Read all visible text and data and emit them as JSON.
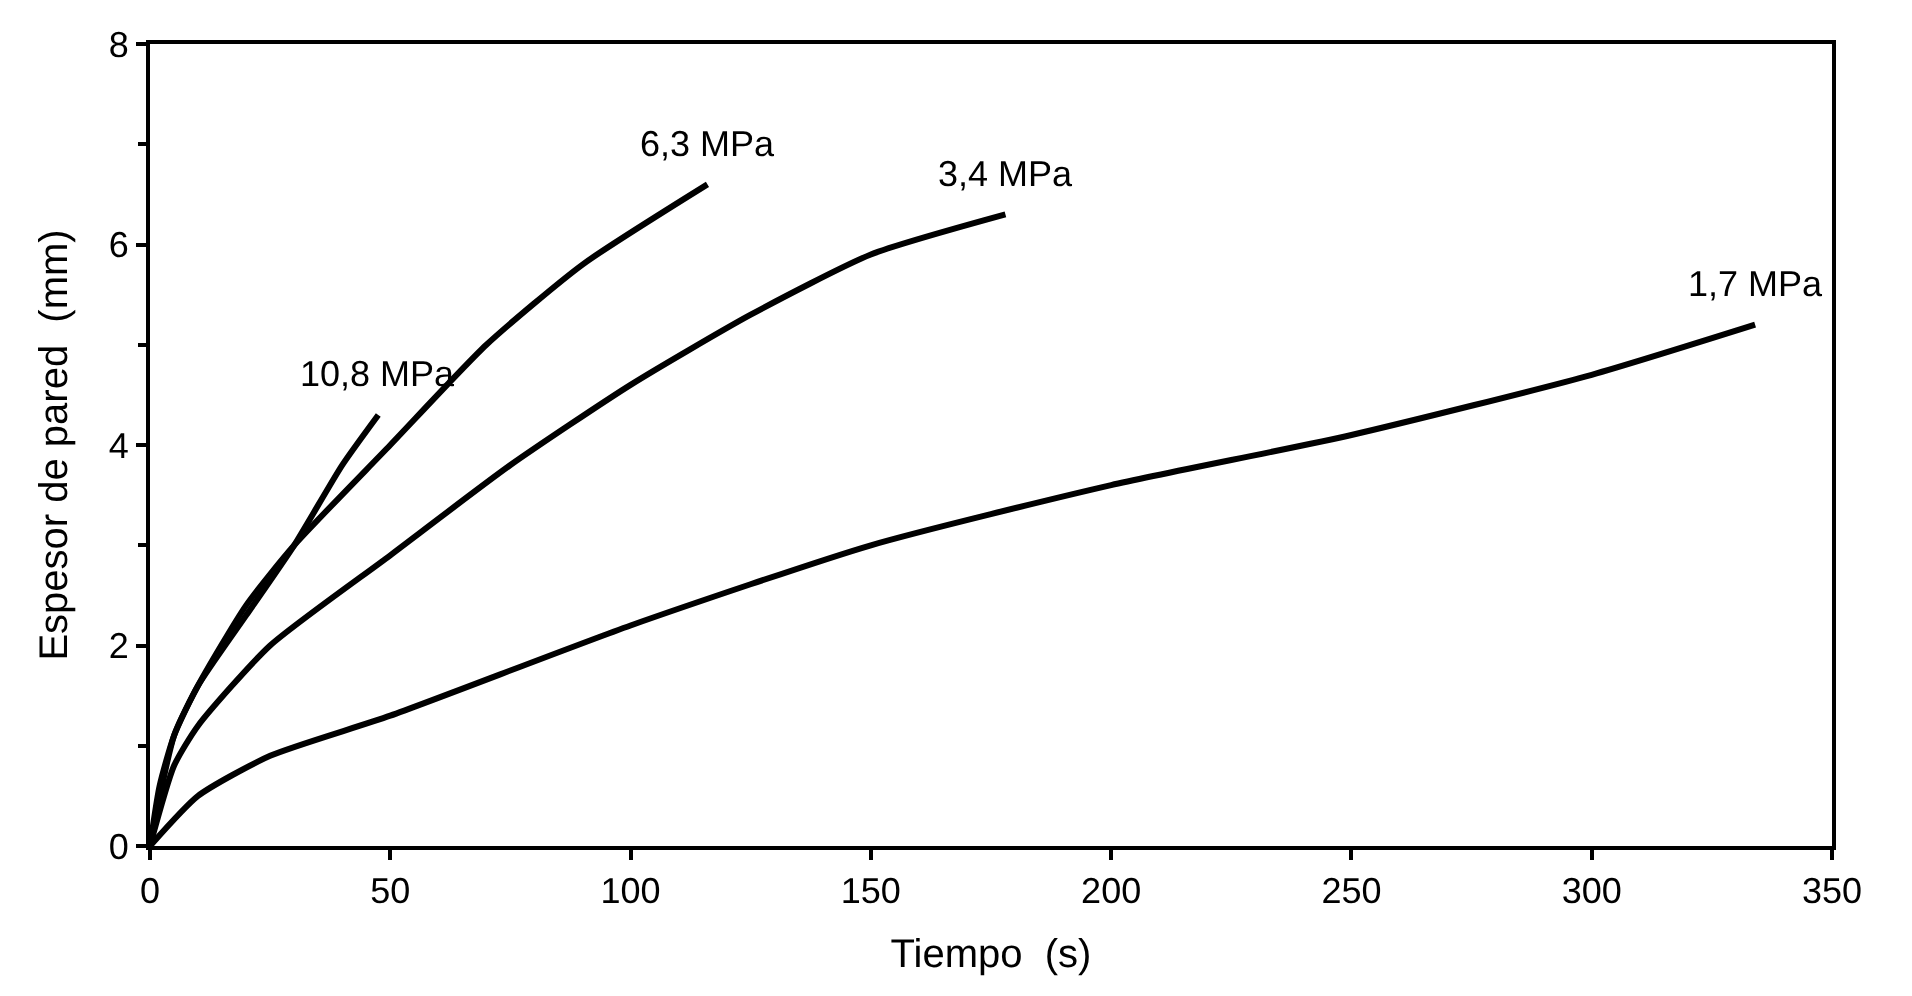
{
  "chart_data": {
    "type": "line",
    "xlabel": "Tiempo  (s)",
    "ylabel": "Espesor de pared  (mm)",
    "xlim": [
      0,
      350
    ],
    "xticks": [
      0,
      50,
      100,
      150,
      200,
      250,
      300,
      350
    ],
    "ylim": [
      0,
      8
    ],
    "yticks": [
      0,
      2,
      4,
      6,
      8
    ],
    "legend": false,
    "marker": "none",
    "line_style": "solid",
    "series": [
      {
        "name": "10,8 MPa",
        "color": "#000000",
        "x": [
          0,
          2,
          5,
          10,
          20,
          30,
          40,
          47.5
        ],
        "values": [
          0,
          0.6,
          1.1,
          1.6,
          2.3,
          3.0,
          3.8,
          4.3
        ]
      },
      {
        "name": "6,3 MPa",
        "color": "#000000",
        "x": [
          0,
          5,
          10,
          20,
          30,
          50,
          70,
          90,
          116
        ],
        "values": [
          0,
          1.1,
          1.6,
          2.4,
          3.0,
          4.0,
          5.0,
          5.8,
          6.6
        ]
      },
      {
        "name": "3,4 MPa",
        "color": "#000000",
        "x": [
          0,
          5,
          10,
          25,
          50,
          75,
          100,
          125,
          150,
          178
        ],
        "values": [
          0,
          0.8,
          1.2,
          2.0,
          2.9,
          3.8,
          4.6,
          5.3,
          5.9,
          6.3
        ]
      },
      {
        "name": "1,7 MPa",
        "color": "#000000",
        "x": [
          0,
          10,
          25,
          50,
          100,
          150,
          200,
          250,
          300,
          334
        ],
        "values": [
          0,
          0.5,
          0.9,
          1.3,
          2.2,
          3.0,
          3.6,
          4.1,
          4.7,
          5.2
        ]
      }
    ]
  }
}
